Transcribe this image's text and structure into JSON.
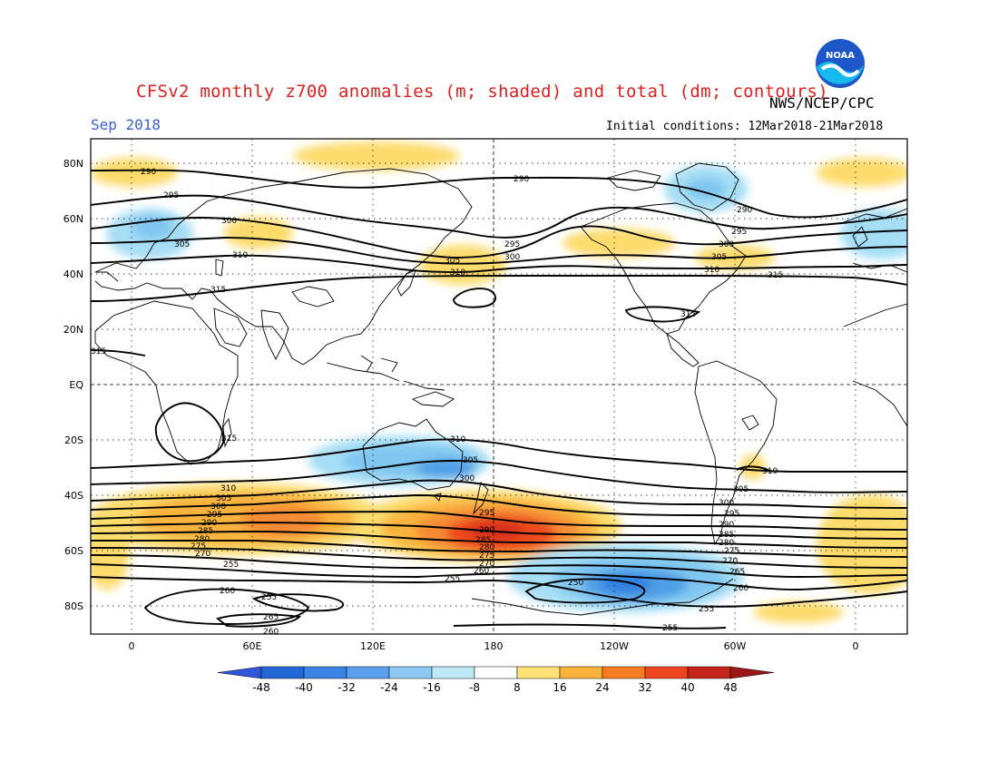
{
  "figure": {
    "title": "CFSv2 monthly z700 anomalies (m; shaded) and total (dm; contours)",
    "valid_month": "Sep 2018",
    "credit": "NWS/NCEP/CPC",
    "initial_conditions": "Initial conditions: 12Mar2018-21Mar2018",
    "logo_text": "NOAA"
  },
  "map": {
    "lat_ticks": [
      "80N",
      "60N",
      "40N",
      "20N",
      "EQ",
      "20S",
      "40S",
      "60S",
      "80S"
    ],
    "lon_ticks": [
      "0",
      "60E",
      "120E",
      "180",
      "120W",
      "60W",
      "0"
    ],
    "contour_labels": [
      "290",
      "290",
      "295",
      "300",
      "305",
      "310",
      "315",
      "315",
      "295",
      "300",
      "305",
      "310",
      "290",
      "295",
      "300",
      "305",
      "310",
      "315",
      "315",
      "315",
      "310",
      "305",
      "300",
      "295",
      "290",
      "285",
      "280",
      "275",
      "270",
      "260",
      "310",
      "305",
      "300",
      "295",
      "290",
      "285",
      "280",
      "275",
      "270",
      "255",
      "260",
      "255",
      "265",
      "260",
      "255",
      "250",
      "255",
      "255",
      "310",
      "305",
      "300",
      "295",
      "290",
      "285",
      "280",
      "275",
      "270",
      "265",
      "260"
    ]
  },
  "legend": {
    "colors": [
      "#2266d8",
      "#3a84e6",
      "#5aa0ec",
      "#8ccaf4",
      "#bde9f7",
      "#ffffff",
      "#fde27a",
      "#f9b33d",
      "#f57d20",
      "#ee4420",
      "#c4251a"
    ],
    "low_arrow_color": "#2f56d8",
    "high_arrow_color": "#9c1616",
    "labels": [
      "-48",
      "-40",
      "-32",
      "-24",
      "-16",
      "-8",
      "8",
      "16",
      "24",
      "32",
      "40",
      "48"
    ]
  }
}
